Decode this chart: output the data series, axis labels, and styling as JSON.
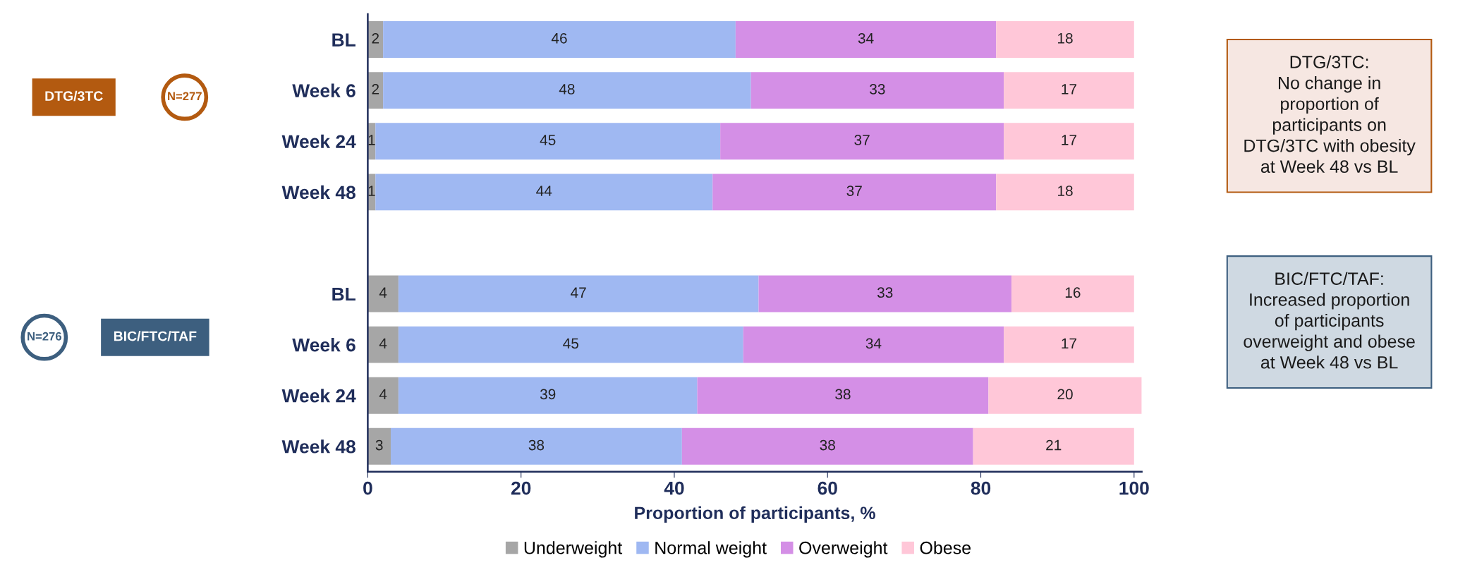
{
  "chart_data": {
    "type": "bar",
    "orientation": "horizontal",
    "stacked": true,
    "data_labels": true,
    "categories": [
      "BL",
      "Week 6",
      "Week 24",
      "Week 48",
      null,
      "BL",
      "Week 6",
      "Week 24",
      "Week 48"
    ],
    "series": [
      {
        "name": "Underweight",
        "color": "#a6a6a6",
        "values": [
          2,
          2,
          1,
          1,
          null,
          4,
          4,
          4,
          3
        ]
      },
      {
        "name": "Normal weight",
        "color": "#9fb8f2",
        "values": [
          46,
          48,
          45,
          44,
          null,
          47,
          45,
          39,
          38
        ]
      },
      {
        "name": "Overweight",
        "color": "#d48fe6",
        "values": [
          34,
          33,
          37,
          37,
          null,
          33,
          34,
          38,
          38
        ]
      },
      {
        "name": "Obese",
        "color": "#ffc7d8",
        "values": [
          18,
          17,
          17,
          18,
          null,
          16,
          17,
          20,
          21
        ]
      }
    ],
    "xlim": [
      0,
      101
    ],
    "xticks": [
      0,
      20,
      40,
      60,
      80,
      100
    ],
    "xlabel": "Proportion of participants, %",
    "legend": "bottom",
    "grid": false,
    "annotations": [
      "DTG/3TC",
      "N=277",
      "N=276",
      "BIC/FTC/TAF",
      "DTG/3TC:\nNo change in\nproportion of\nparticipants on\nDTG/3TC with obesity\nat Week 48 vs BL",
      "BIC/FTC/TAF:\nIncreased proportion\nof participants\noverweight and obese\nat Week 48 vs BL"
    ]
  }
}
